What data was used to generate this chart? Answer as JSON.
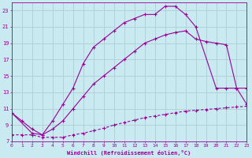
{
  "xlabel": "Windchill (Refroidissement éolien,°C)",
  "bg_color": "#c8eaf0",
  "line_color": "#990099",
  "grid_color": "#b0cdd4",
  "xlim": [
    0,
    23
  ],
  "ylim": [
    7,
    24
  ],
  "yticks": [
    7,
    9,
    11,
    13,
    15,
    17,
    19,
    21,
    23
  ],
  "xticks": [
    0,
    1,
    2,
    3,
    4,
    5,
    6,
    7,
    8,
    9,
    10,
    11,
    12,
    13,
    14,
    15,
    16,
    17,
    18,
    19,
    20,
    21,
    22,
    23
  ],
  "curve_bottom_x": [
    0,
    1,
    2,
    3,
    4,
    5,
    6,
    7,
    8,
    9,
    10,
    11,
    12,
    13,
    14,
    15,
    16,
    17,
    18,
    19,
    20,
    21,
    22,
    23
  ],
  "curve_bottom_y": [
    7.8,
    7.8,
    7.8,
    7.5,
    7.5,
    7.5,
    7.8,
    8.0,
    8.3,
    8.6,
    9.0,
    9.3,
    9.6,
    9.9,
    10.1,
    10.3,
    10.5,
    10.7,
    10.8,
    10.9,
    11.0,
    11.1,
    11.2,
    11.3
  ],
  "curve_mid_x": [
    0,
    1,
    2,
    3,
    4,
    5,
    6,
    7,
    8,
    9,
    10,
    11,
    12,
    13,
    14,
    15,
    16,
    17,
    18,
    19,
    20,
    21,
    22,
    23
  ],
  "curve_mid_y": [
    10.5,
    9.5,
    8.5,
    7.8,
    8.5,
    9.5,
    11.0,
    12.5,
    14.0,
    15.0,
    16.0,
    17.0,
    18.0,
    19.0,
    19.5,
    20.0,
    20.3,
    20.5,
    19.5,
    19.2,
    19.0,
    18.8,
    13.5,
    11.5
  ],
  "curve_top_x": [
    0,
    2,
    3,
    4,
    5,
    6,
    7,
    8,
    9,
    10,
    11,
    12,
    13,
    14,
    15,
    16,
    17,
    18,
    20,
    21,
    22,
    23
  ],
  "curve_top_y": [
    10.5,
    8.0,
    7.8,
    9.5,
    11.5,
    13.5,
    16.5,
    18.5,
    19.5,
    20.5,
    21.5,
    22.0,
    22.5,
    22.5,
    23.5,
    23.5,
    22.5,
    21.0,
    13.5,
    13.5,
    13.5,
    13.5
  ]
}
